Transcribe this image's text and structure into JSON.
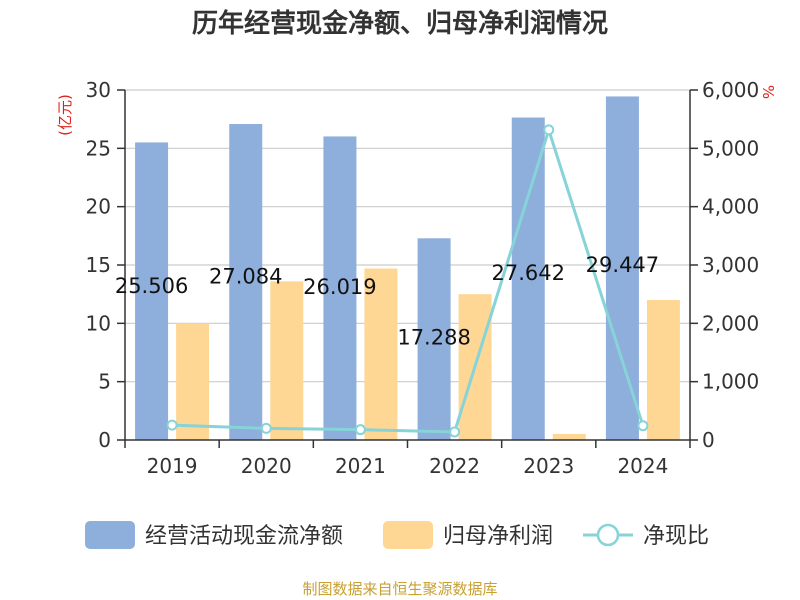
{
  "chart_data": {
    "title": "历年经营现金净额、归母净利润情况",
    "categories": [
      "2019",
      "2020",
      "2021",
      "2022",
      "2023",
      "2024"
    ],
    "left_axis": {
      "unit": "(亿元)",
      "ylim": [
        0,
        30
      ],
      "ticks": [
        "0",
        "5",
        "10",
        "15",
        "20",
        "25",
        "30"
      ]
    },
    "right_axis": {
      "unit": "%",
      "ylim": [
        0,
        6000
      ],
      "ticks": [
        "0",
        "1,000",
        "2,000",
        "3,000",
        "4,000",
        "5,000",
        "6,000"
      ]
    },
    "series": [
      {
        "name": "经营活动现金流净额",
        "type": "bar",
        "axis": "left",
        "color": "#8eaedb",
        "values": [
          25.506,
          27.084,
          26.019,
          17.288,
          27.642,
          29.447
        ],
        "labels": [
          "25.506",
          "27.084",
          "26.019",
          "17.288",
          "27.642",
          "29.447"
        ]
      },
      {
        "name": "归母净利润",
        "type": "bar",
        "axis": "left",
        "color": "#fed795",
        "values": [
          10.0,
          13.6,
          14.7,
          12.5,
          0.52,
          12.0
        ]
      },
      {
        "name": "净现比",
        "type": "line",
        "axis": "right",
        "color": "#86d3d8",
        "values": [
          255,
          199,
          177,
          138,
          5316,
          245
        ]
      }
    ],
    "legend_position": "bottom",
    "grid": true
  },
  "footer": {
    "source": "制图数据来自恒生聚源数据库"
  }
}
